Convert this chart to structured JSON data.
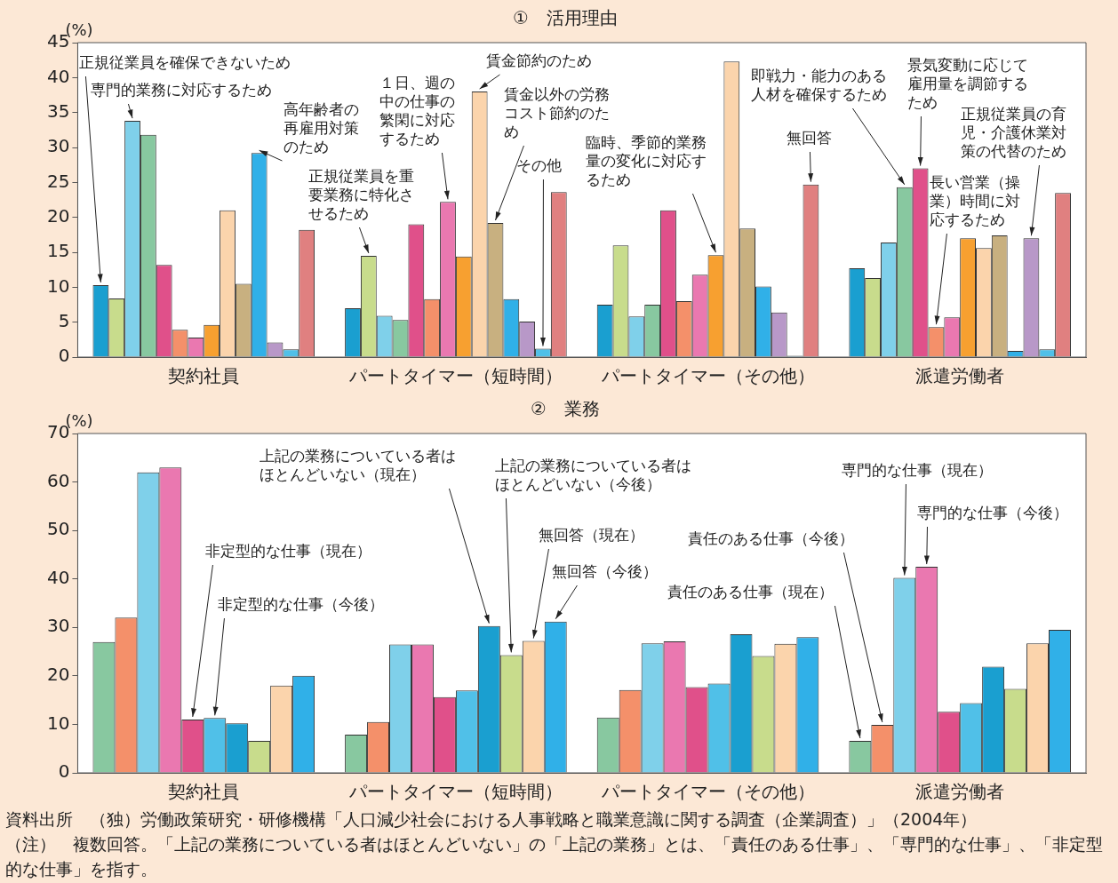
{
  "chart_data": [
    {
      "type": "bar",
      "title": "①　活用理由",
      "ylabel": "(%)",
      "categories": [
        "契約社員",
        "パートタイマー（短時間）",
        "パートタイマー（その他）",
        "派遣労働者"
      ],
      "ylim": [
        0,
        45
      ],
      "yticks": [
        0,
        5,
        10,
        15,
        20,
        25,
        30,
        35,
        40,
        45
      ],
      "grid": false,
      "legend": false,
      "series": [
        {
          "name": "正規従業員を確保できないため",
          "color": "#1a9fd0",
          "values": [
            10.3,
            7.0,
            7.5,
            12.7
          ]
        },
        {
          "name": "正規従業員を重要業務に特化させるため",
          "color": "#c8dc8c",
          "values": [
            8.4,
            14.5,
            16.0,
            11.3
          ]
        },
        {
          "name": "専門的業務に対応するため",
          "color": "#7fd0ea",
          "values": [
            33.8,
            5.9,
            5.8,
            16.4
          ]
        },
        {
          "name": "即戦力・能力のある人材を確保するため",
          "color": "#88c8a0",
          "values": [
            31.8,
            5.3,
            7.5,
            24.3
          ]
        },
        {
          "name": "景気変動に応じて雇用量を調節するため",
          "color": "#e0508a",
          "values": [
            13.2,
            19.0,
            21.0,
            27.0
          ]
        },
        {
          "name": "長い営業（操業）時間に対応するため",
          "color": "#f4906a",
          "values": [
            3.9,
            8.3,
            8.0,
            4.3
          ]
        },
        {
          "name": "１日、週の中の仕事の繁閑に対応するため",
          "color": "#ea78b0",
          "values": [
            2.8,
            22.2,
            11.8,
            5.7
          ]
        },
        {
          "name": "臨時、季節的業務量の変化に対応するため",
          "color": "#f7a030",
          "values": [
            4.6,
            14.4,
            14.6,
            17.0
          ]
        },
        {
          "name": "賃金節約のため",
          "color": "#fbd4ac",
          "values": [
            21.0,
            38.0,
            42.3,
            15.6
          ]
        },
        {
          "name": "賃金以外の労務コスト節約のため",
          "color": "#c8b080",
          "values": [
            10.5,
            19.2,
            18.4,
            17.4
          ]
        },
        {
          "name": "高年齢者の再雇用対策のため",
          "color": "#30b0e8",
          "values": [
            29.2,
            8.3,
            10.1,
            0.9
          ]
        },
        {
          "name": "正規従業員の育児・介護休業対策の代替のため",
          "color": "#b898c8",
          "values": [
            2.1,
            5.1,
            6.4,
            17.0
          ]
        },
        {
          "name": "その他",
          "color": "#50c0e8",
          "values": [
            1.1,
            1.2,
            0.2,
            1.1
          ]
        },
        {
          "name": "無回答",
          "color": "#e08080",
          "values": [
            18.2,
            23.6,
            24.7,
            23.5
          ]
        }
      ]
    },
    {
      "type": "bar",
      "title": "②　業務",
      "ylabel": "(%)",
      "categories": [
        "契約社員",
        "パートタイマー（短時間）",
        "パートタイマー（その他）",
        "派遣労働者"
      ],
      "ylim": [
        0,
        70
      ],
      "yticks": [
        0,
        10,
        20,
        30,
        40,
        50,
        60,
        70
      ],
      "grid": false,
      "legend": false,
      "series": [
        {
          "name": "責任のある仕事（現在）",
          "color": "#88c8a0",
          "values": [
            27.0,
            7.9,
            11.4,
            6.6
          ]
        },
        {
          "name": "責任のある仕事（今後）",
          "color": "#f4906a",
          "values": [
            32.0,
            10.5,
            17.1,
            9.9
          ]
        },
        {
          "name": "専門的な仕事（現在）",
          "color": "#7fd0ea",
          "values": [
            62.0,
            26.5,
            26.7,
            40.2
          ]
        },
        {
          "name": "専門的な仕事（今後）",
          "color": "#ea78b0",
          "values": [
            63.0,
            26.5,
            27.1,
            42.5
          ]
        },
        {
          "name": "非定型的な仕事（現在）",
          "color": "#e0508a",
          "values": [
            11.0,
            15.6,
            17.7,
            12.6
          ]
        },
        {
          "name": "非定型的な仕事（今後）",
          "color": "#50c0e8",
          "values": [
            11.3,
            17.0,
            18.4,
            14.4
          ]
        },
        {
          "name": "上記の業務についている者はほとんどいない（現在）",
          "color": "#1a9fd0",
          "values": [
            10.2,
            30.3,
            28.6,
            21.9
          ]
        },
        {
          "name": "上記の業務についている者はほとんどいない（今後）",
          "color": "#c8dc8c",
          "values": [
            6.6,
            24.3,
            24.1,
            17.3
          ]
        },
        {
          "name": "無回答（現在）",
          "color": "#fbd4ac",
          "values": [
            18.0,
            27.2,
            26.6,
            26.7
          ]
        },
        {
          "name": "無回答（今後）",
          "color": "#30b0e8",
          "values": [
            20.0,
            31.2,
            28.0,
            29.5
          ]
        }
      ],
      "annotations": [
        "資料出所　（独）労働政策研究・研修機構「人口減少社会における人事戦略と職業意識に関する調査（企業調査）」（2004年）",
        "（注）　複数回答。「上記の業務についている者はほとんどいない」の「上記の業務」とは、「責任のある仕事」、「専門的な仕事」、「非定型的な仕事」を指す。"
      ]
    }
  ]
}
